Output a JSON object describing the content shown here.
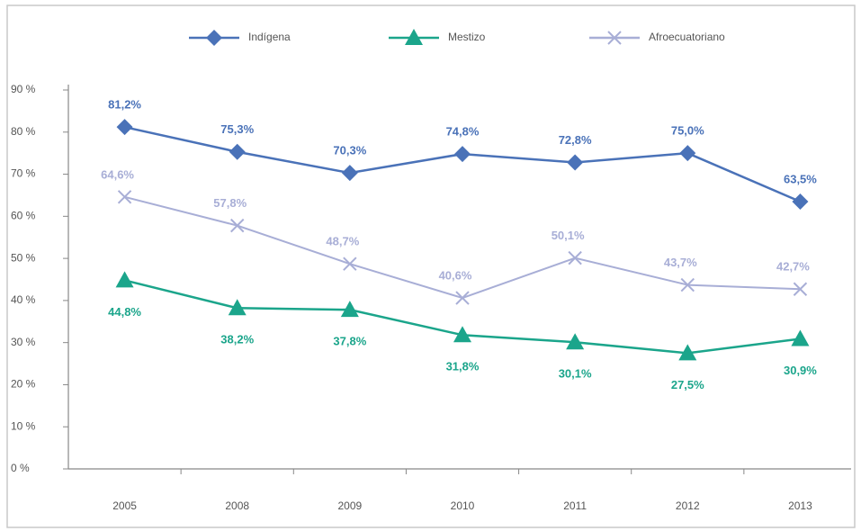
{
  "chart_data": {
    "type": "line",
    "categories": [
      "2005",
      "2008",
      "2009",
      "2010",
      "2011",
      "2012",
      "2013"
    ],
    "series": [
      {
        "name": "Indígena",
        "color": "#4a72b8",
        "marker": "diamond",
        "values": [
          81.2,
          75.3,
          70.3,
          74.8,
          72.8,
          75.0,
          63.5
        ],
        "value_labels": [
          "81,2%",
          "75,3%",
          "70,3%",
          "74,8%",
          "72,8%",
          "75,0%",
          "63,5%"
        ]
      },
      {
        "name": "Mestizo",
        "color": "#1ba58b",
        "marker": "triangle",
        "values": [
          44.8,
          38.2,
          37.8,
          31.8,
          30.1,
          27.5,
          30.9
        ],
        "value_labels": [
          "44,8%",
          "38,2%",
          "37,8%",
          "31,8%",
          "30,1%",
          "27,5%",
          "30,9%"
        ]
      },
      {
        "name": "Afroecuatoriano",
        "color": "#a8aed6",
        "marker": "x",
        "values": [
          64.6,
          57.8,
          48.7,
          40.6,
          50.1,
          43.7,
          42.7
        ],
        "value_labels": [
          "64,6%",
          "57,8%",
          "48,7%",
          "40,6%",
          "50,1%",
          "43,7%",
          "42,7%"
        ]
      }
    ],
    "ylim": [
      0,
      90
    ],
    "yticks": [
      {
        "value": 0,
        "label": "0 %"
      },
      {
        "value": 10,
        "label": "10 %"
      },
      {
        "value": 20,
        "label": "20 %"
      },
      {
        "value": 30,
        "label": "30 %"
      },
      {
        "value": 40,
        "label": "40 %"
      },
      {
        "value": 50,
        "label": "50 %"
      },
      {
        "value": 60,
        "label": "60 %"
      },
      {
        "value": 70,
        "label": "70 %"
      },
      {
        "value": 80,
        "label": "80 %"
      },
      {
        "value": 90,
        "label": "90 %"
      }
    ],
    "grid": false,
    "legend": "top"
  }
}
